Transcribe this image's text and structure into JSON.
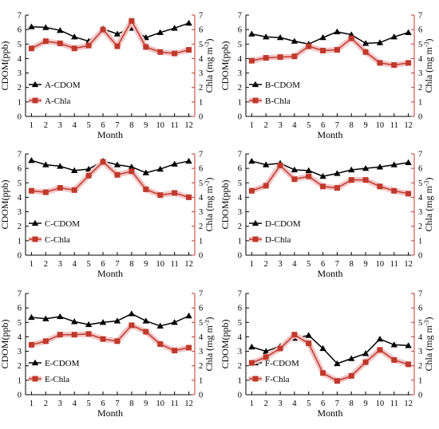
{
  "chart_data": [
    {
      "panel": "A",
      "type": "line",
      "xlabel": "Month",
      "ylabel": "CDOM(ppb)",
      "y2label": "Chla (mg m",
      "y2label_sup": "-3",
      "y2label_end": ")",
      "x": [
        1,
        2,
        3,
        4,
        5,
        6,
        7,
        8,
        9,
        10,
        11,
        12
      ],
      "ylim": [
        0,
        7
      ],
      "y2lim": [
        0,
        7
      ],
      "yticks": [
        "0",
        "1",
        "2",
        "3",
        "4",
        "5",
        "6",
        "7"
      ],
      "xticks": [
        "1",
        "2",
        "3",
        "4",
        "5",
        "6",
        "7",
        "8",
        "9",
        "10",
        "11",
        "12"
      ],
      "legend_position": "bottom-left",
      "series": [
        {
          "name": "A-CDOM",
          "axis": "left",
          "color": "#000000",
          "marker": "triangle",
          "values": [
            6.2,
            6.15,
            5.95,
            5.5,
            5.2,
            6.05,
            5.7,
            6.1,
            5.45,
            5.8,
            6.1,
            6.45
          ]
        },
        {
          "name": "A-Chla",
          "axis": "right",
          "color": "#c0392b",
          "marker": "square",
          "values": [
            4.7,
            5.2,
            5.05,
            4.7,
            4.9,
            6.0,
            4.85,
            6.6,
            4.8,
            4.45,
            4.35,
            4.6
          ]
        }
      ]
    },
    {
      "panel": "B",
      "type": "line",
      "xlabel": "Month",
      "ylabel": "CDOM(ppb)",
      "y2label": "Chla (mg m",
      "y2label_sup": "-3",
      "y2label_end": ")",
      "x": [
        1,
        2,
        3,
        4,
        5,
        6,
        7,
        8,
        9,
        10,
        11,
        12
      ],
      "ylim": [
        0,
        7
      ],
      "y2lim": [
        0,
        7
      ],
      "yticks": [
        "0",
        "1",
        "2",
        "3",
        "4",
        "5",
        "6",
        "7"
      ],
      "xticks": [
        "1",
        "2",
        "3",
        "4",
        "5",
        "6",
        "7",
        "8",
        "9",
        "10",
        "11",
        "12"
      ],
      "legend_position": "bottom-left",
      "series": [
        {
          "name": "B-CDOM",
          "axis": "left",
          "color": "#000000",
          "marker": "triangle",
          "values": [
            5.7,
            5.5,
            5.45,
            5.2,
            5.0,
            5.45,
            5.85,
            5.65,
            5.05,
            5.1,
            5.5,
            5.8
          ]
        },
        {
          "name": "B-Chla",
          "axis": "right",
          "color": "#c0392b",
          "marker": "square",
          "values": [
            3.85,
            4.05,
            4.1,
            4.15,
            4.85,
            4.55,
            4.6,
            5.4,
            4.45,
            3.7,
            3.55,
            3.7
          ]
        }
      ]
    },
    {
      "panel": "C",
      "type": "line",
      "xlabel": "Month",
      "ylabel": "CDOM(ppb)",
      "y2label": "Chla (mg m",
      "y2label_sup": "-3",
      "y2label_end": ")",
      "x": [
        1,
        2,
        3,
        4,
        5,
        6,
        7,
        8,
        9,
        10,
        11,
        12
      ],
      "ylim": [
        0,
        7
      ],
      "y2lim": [
        0,
        7
      ],
      "yticks": [
        "0",
        "1",
        "2",
        "3",
        "4",
        "5",
        "6",
        "7"
      ],
      "xticks": [
        "1",
        "2",
        "3",
        "4",
        "5",
        "6",
        "7",
        "8",
        "9",
        "10",
        "11",
        "12"
      ],
      "legend_position": "bottom-left",
      "series": [
        {
          "name": "C-CDOM",
          "axis": "left",
          "color": "#000000",
          "marker": "triangle",
          "values": [
            6.55,
            6.25,
            6.15,
            5.85,
            5.95,
            6.5,
            6.25,
            6.1,
            5.7,
            5.95,
            6.3,
            6.5
          ]
        },
        {
          "name": "C-Chla",
          "axis": "right",
          "color": "#c0392b",
          "marker": "square",
          "values": [
            4.45,
            4.35,
            4.65,
            4.5,
            5.5,
            6.45,
            5.55,
            5.8,
            4.55,
            4.15,
            4.3,
            4.0
          ]
        }
      ]
    },
    {
      "panel": "D",
      "type": "line",
      "xlabel": "Month",
      "ylabel": "CDOM(ppb)",
      "y2label": "Chla (mg m",
      "y2label_sup": "-3",
      "y2label_end": ")",
      "x": [
        1,
        2,
        3,
        4,
        5,
        6,
        7,
        8,
        9,
        10,
        11,
        12
      ],
      "ylim": [
        0,
        7
      ],
      "y2lim": [
        0,
        7
      ],
      "yticks": [
        "0",
        "1",
        "2",
        "3",
        "4",
        "5",
        "6",
        "7"
      ],
      "xticks": [
        "1",
        "2",
        "3",
        "4",
        "5",
        "6",
        "7",
        "8",
        "9",
        "10",
        "11",
        "12"
      ],
      "legend_position": "bottom-left",
      "series": [
        {
          "name": "D-CDOM",
          "axis": "left",
          "color": "#000000",
          "marker": "triangle",
          "values": [
            6.5,
            6.25,
            6.35,
            5.9,
            5.85,
            5.45,
            5.65,
            5.9,
            6.0,
            6.1,
            6.25,
            6.4
          ]
        },
        {
          "name": "D-Chla",
          "axis": "right",
          "color": "#c0392b",
          "marker": "square",
          "values": [
            4.45,
            4.8,
            6.2,
            5.25,
            5.45,
            4.75,
            4.65,
            5.2,
            5.2,
            4.75,
            4.45,
            4.25
          ]
        }
      ]
    },
    {
      "panel": "E",
      "type": "line",
      "xlabel": "Month",
      "ylabel": "CDOM(ppb)",
      "y2label": "Chla (mg m",
      "y2label_sup": "-3",
      "y2label_end": ")",
      "x": [
        1,
        2,
        3,
        4,
        5,
        6,
        7,
        8,
        9,
        10,
        11,
        12
      ],
      "ylim": [
        0,
        7
      ],
      "y2lim": [
        0,
        7
      ],
      "yticks": [
        "0",
        "1",
        "2",
        "3",
        "4",
        "5",
        "6",
        "7"
      ],
      "xticks": [
        "1",
        "2",
        "3",
        "4",
        "5",
        "6",
        "7",
        "8",
        "9",
        "10",
        "11",
        "12"
      ],
      "legend_position": "bottom-left",
      "series": [
        {
          "name": "E-CDOM",
          "axis": "left",
          "color": "#000000",
          "marker": "triangle",
          "values": [
            5.35,
            5.25,
            5.4,
            5.05,
            4.85,
            5.0,
            5.1,
            5.6,
            5.1,
            4.75,
            5.0,
            5.45
          ]
        },
        {
          "name": "E-Chla",
          "axis": "right",
          "color": "#c0392b",
          "marker": "square",
          "values": [
            3.45,
            3.7,
            4.15,
            4.15,
            4.2,
            3.85,
            3.7,
            4.8,
            4.35,
            3.5,
            3.05,
            3.25
          ]
        }
      ]
    },
    {
      "panel": "F",
      "type": "line",
      "xlabel": "Month",
      "ylabel": "CDOM(ppb)",
      "y2label": "Chla (mg m",
      "y2label_sup": "-3",
      "y2label_end": ")",
      "x": [
        1,
        2,
        3,
        4,
        5,
        6,
        7,
        8,
        9,
        10,
        11,
        12
      ],
      "ylim": [
        0,
        7
      ],
      "y2lim": [
        0,
        7
      ],
      "yticks": [
        "0",
        "1",
        "2",
        "3",
        "4",
        "5",
        "6",
        "7"
      ],
      "xticks": [
        "1",
        "2",
        "3",
        "4",
        "5",
        "6",
        "7",
        "8",
        "9",
        "10",
        "11",
        "12"
      ],
      "legend_position": "bottom-left",
      "series": [
        {
          "name": "F-CDOM",
          "axis": "left",
          "color": "#000000",
          "marker": "triangle",
          "values": [
            3.3,
            3.0,
            3.35,
            3.9,
            4.1,
            3.2,
            2.15,
            2.5,
            2.85,
            3.85,
            3.45,
            3.4
          ]
        },
        {
          "name": "F-Chla",
          "axis": "right",
          "color": "#c0392b",
          "marker": "square",
          "values": [
            2.2,
            2.6,
            3.2,
            4.15,
            3.55,
            1.5,
            0.95,
            1.3,
            2.25,
            3.1,
            2.4,
            2.1
          ]
        }
      ]
    }
  ]
}
